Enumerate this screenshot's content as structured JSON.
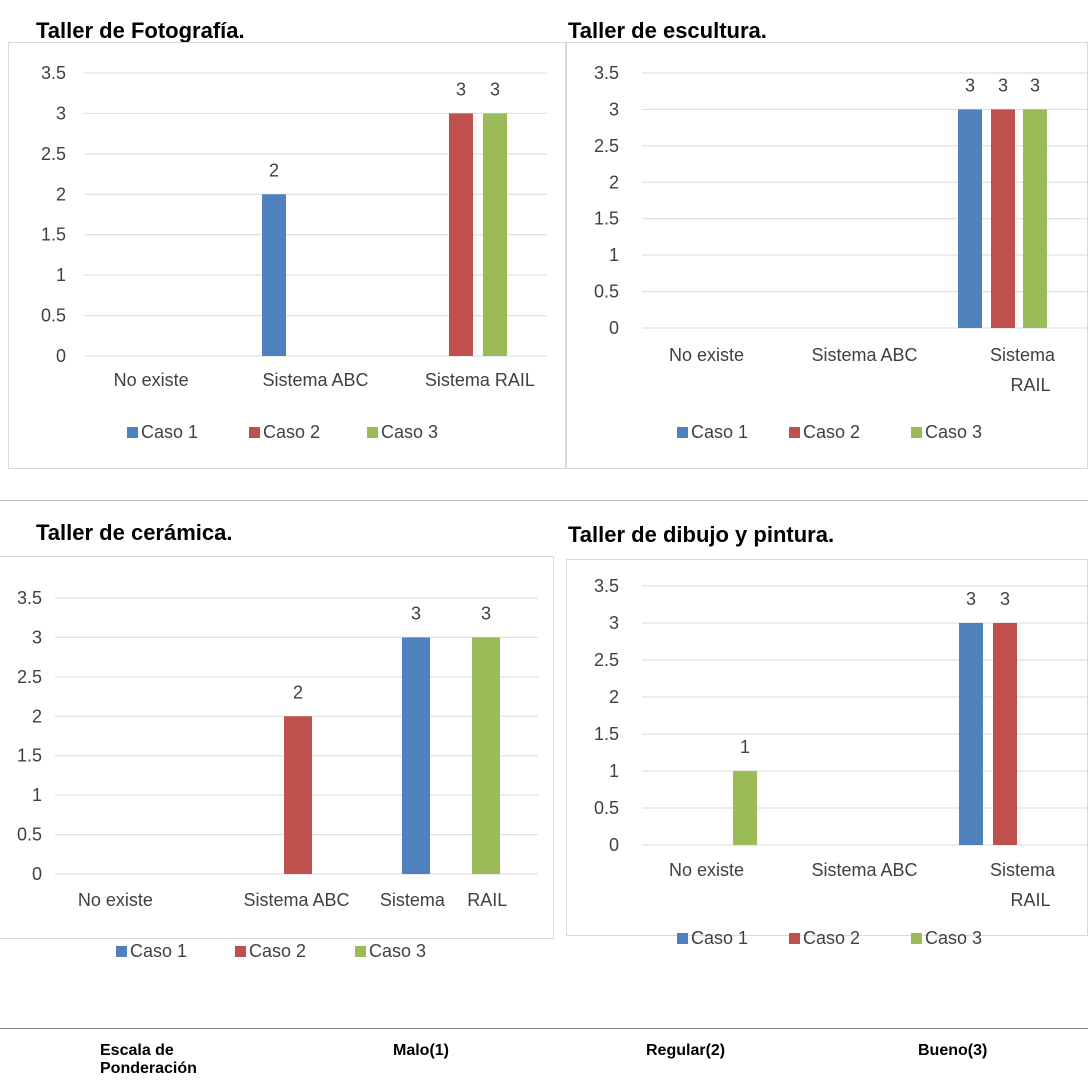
{
  "chart_data": [
    {
      "type": "bar",
      "title": "Taller de Fotografía.",
      "categories": [
        "No existe",
        "Sistema ABC",
        "Sistema RAIL"
      ],
      "series": [
        {
          "name": "Caso 1",
          "values": [
            null,
            2,
            null
          ]
        },
        {
          "name": "Caso 2",
          "values": [
            null,
            null,
            3
          ]
        },
        {
          "name": "Caso 3",
          "values": [
            null,
            null,
            3
          ]
        }
      ],
      "ylim": [
        0,
        3.5
      ],
      "yticks": [
        "0",
        "0.5",
        "1",
        "1.5",
        "2",
        "2.5",
        "3",
        "3.5"
      ],
      "data_labels": true,
      "legend": "bottom",
      "grid": true
    },
    {
      "type": "bar",
      "title": "Taller de escultura.",
      "categories": [
        "No existe",
        "Sistema ABC",
        "Sistema RAIL"
      ],
      "series": [
        {
          "name": "Caso 1",
          "values": [
            null,
            null,
            3
          ]
        },
        {
          "name": "Caso 2",
          "values": [
            null,
            null,
            3
          ]
        },
        {
          "name": "Caso 3",
          "values": [
            null,
            null,
            3
          ]
        }
      ],
      "ylim": [
        0,
        3.5
      ],
      "yticks": [
        "0",
        "0.5",
        "1",
        "1.5",
        "2",
        "2.5",
        "3",
        "3.5"
      ],
      "data_labels": true,
      "legend": "bottom",
      "grid": true
    },
    {
      "type": "bar",
      "title": "Taller de cerámica.",
      "categories": [
        "No existe",
        "Sistema ABC",
        "Sistema",
        "RAIL"
      ],
      "series": [
        {
          "name": "Caso 1",
          "values": [
            null,
            null,
            3,
            null
          ]
        },
        {
          "name": "Caso 2",
          "values": [
            null,
            2,
            null,
            null
          ]
        },
        {
          "name": "Caso 3",
          "values": [
            null,
            null,
            null,
            3
          ]
        }
      ],
      "ylim": [
        0,
        3.5
      ],
      "yticks": [
        "0",
        "0.5",
        "1",
        "1.5",
        "2",
        "2.5",
        "3",
        "3.5"
      ],
      "data_labels": true,
      "legend": "bottom",
      "grid": true
    },
    {
      "type": "bar",
      "title": "Taller de dibujo y pintura.",
      "categories": [
        "No existe",
        "Sistema ABC",
        "Sistema RAIL"
      ],
      "series": [
        {
          "name": "Caso 1",
          "values": [
            null,
            null,
            3
          ]
        },
        {
          "name": "Caso 2",
          "values": [
            null,
            null,
            3
          ]
        },
        {
          "name": "Caso 3",
          "values": [
            1,
            null,
            null
          ]
        }
      ],
      "ylim": [
        0,
        3.5
      ],
      "yticks": [
        "0",
        "0.5",
        "1",
        "1.5",
        "2",
        "2.5",
        "3",
        "3.5"
      ],
      "data_labels": true,
      "legend": "bottom",
      "grid": true
    }
  ],
  "colors": {
    "Caso 1": "#4f81bd",
    "Caso 2": "#c0504d",
    "Caso 3": "#9bbb59"
  },
  "scale_row": {
    "label": "Escala de Ponderación",
    "items": [
      "Malo(1)",
      "Regular(2)",
      "Bueno(3)"
    ]
  }
}
